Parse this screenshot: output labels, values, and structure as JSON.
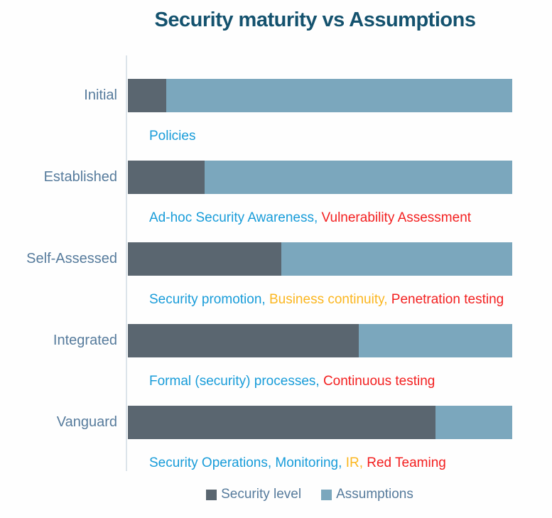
{
  "chart_data": {
    "type": "bar",
    "orientation": "horizontal_stacked",
    "title": "Security maturity vs Assumptions",
    "categories": [
      "Initial",
      "Established",
      "Self-Assessed",
      "Integrated",
      "Vanguard"
    ],
    "series": [
      {
        "name": "Security level",
        "values": [
          10,
          20,
          40,
          60,
          80
        ]
      },
      {
        "name": "Assumptions",
        "values": [
          90,
          80,
          60,
          40,
          20
        ]
      }
    ],
    "xlim": [
      0,
      100
    ],
    "grid": false,
    "legend_position": "bottom",
    "annotations": [
      {
        "category": "Initial",
        "parts": [
          {
            "text": "Policies",
            "color_key": "blue"
          }
        ]
      },
      {
        "category": "Established",
        "parts": [
          {
            "text": "Ad-hoc Security Awareness, ",
            "color_key": "blue"
          },
          {
            "text": "Vulnerability Assessment",
            "color_key": "red"
          }
        ]
      },
      {
        "category": "Self-Assessed",
        "parts": [
          {
            "text": "Security promotion, ",
            "color_key": "blue"
          },
          {
            "text": "Business continuity, ",
            "color_key": "yellow"
          },
          {
            "text": "Penetration testing",
            "color_key": "red"
          }
        ]
      },
      {
        "category": "Integrated",
        "parts": [
          {
            "text": "Formal (security) processes, ",
            "color_key": "blue"
          },
          {
            "text": "Continuous testing",
            "color_key": "red"
          }
        ]
      },
      {
        "category": "Vanguard",
        "parts": [
          {
            "text": "Security Operations, Monitoring, ",
            "color_key": "blue"
          },
          {
            "text": "IR, ",
            "color_key": "yellow"
          },
          {
            "text": "Red Teaming",
            "color_key": "red"
          }
        ]
      }
    ]
  },
  "legend": {
    "security_label": "Security level",
    "assumptions_label": "Assumptions"
  },
  "colors": {
    "title": "#14526e",
    "category_label": "#567b9c",
    "legend_text": "#567b9c",
    "bar_dark": "#5a6670",
    "bar_light": "#7ba7bd",
    "axis_line": "#dce4ea",
    "blue": "#189cd9",
    "yellow": "#fbb61f",
    "red": "#f32020"
  }
}
